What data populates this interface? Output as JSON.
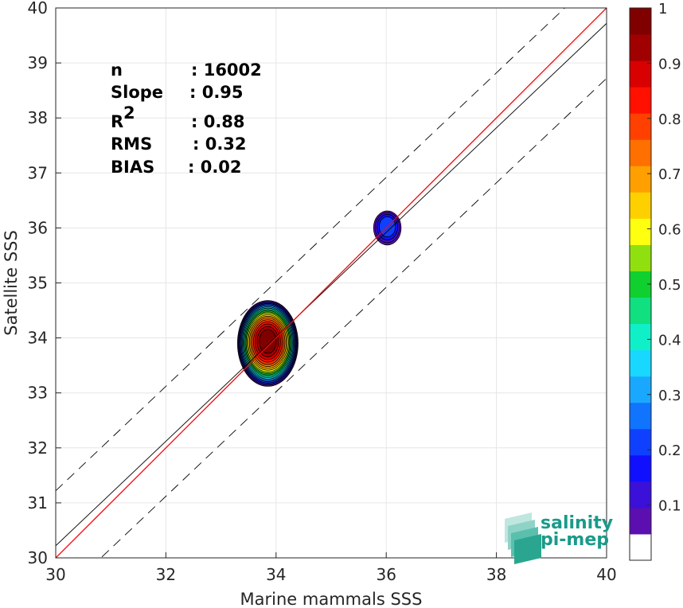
{
  "chart_data": {
    "type": "heatmap",
    "xlabel": "Marine mammals SSS",
    "ylabel": "Satellite SSS",
    "xlim": [
      30,
      40
    ],
    "ylim": [
      30,
      40
    ],
    "xticks": [
      "30",
      "32",
      "34",
      "36",
      "38",
      "40"
    ],
    "yticks": [
      "30",
      "31",
      "32",
      "33",
      "34",
      "35",
      "36",
      "37",
      "38",
      "39",
      "40"
    ],
    "grid": true,
    "stats": [
      {
        "label": "n",
        "value": ": 16002"
      },
      {
        "label": "Slope",
        "value": ": 0.95"
      },
      {
        "label": "R",
        "sup": "2",
        "value": ": 0.88"
      },
      {
        "label": "RMS",
        "value": ": 0.32"
      },
      {
        "label": "BIAS",
        "value": ": 0.02"
      }
    ],
    "lines": {
      "identity": {
        "slope": 1.0,
        "intercept": 0.0,
        "color": "#ff0000"
      },
      "fit": {
        "slope": 0.95,
        "intercept": 1.72,
        "color": "#000000"
      },
      "offset_dashed": 1.0
    },
    "density_blobs": [
      {
        "cx": 33.85,
        "cy": 33.9,
        "rx": 0.55,
        "ry": 0.78,
        "peak": 1.0
      },
      {
        "cx": 36.02,
        "cy": 36.0,
        "rx": 0.25,
        "ry": 0.31,
        "peak": 0.2
      }
    ],
    "colorbar": {
      "ticks": [
        "0.1",
        "0.2",
        "0.3",
        "0.4",
        "0.5",
        "0.6",
        "0.7",
        "0.8",
        "0.9",
        "1"
      ],
      "levels": [
        "#ffffff",
        "#5b0fb0",
        "#3b10d8",
        "#1010ff",
        "#1040ff",
        "#1074ff",
        "#1aa8ff",
        "#18d8ff",
        "#10f0c8",
        "#10e080",
        "#10d030",
        "#90e010",
        "#ffff10",
        "#ffd000",
        "#ffa000",
        "#ff7000",
        "#ff4000",
        "#ff1000",
        "#d80000",
        "#a00000",
        "#800000"
      ]
    }
  },
  "logo": {
    "line1": "salinity",
    "line2": "pi-mep"
  }
}
